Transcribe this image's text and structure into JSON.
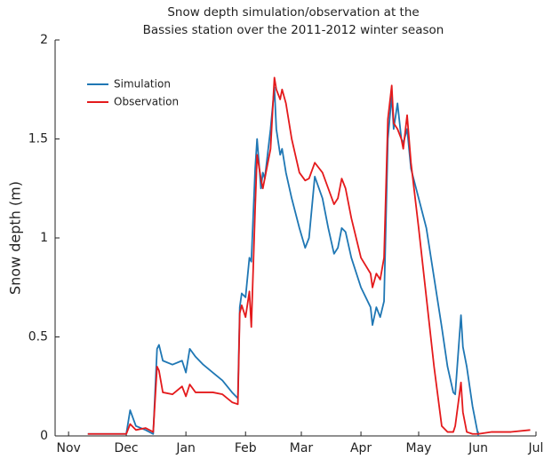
{
  "chart_data": {
    "type": "line",
    "title": [
      "Snow depth simulation/observation at the",
      "Bassies station over the 2011-2012 winter season"
    ],
    "ylabel": "Snow depth (m)",
    "x": [
      10,
      20,
      30,
      32,
      35,
      40,
      44,
      46,
      47,
      49,
      54,
      59,
      61,
      63,
      66,
      70,
      75,
      80,
      85,
      88,
      89,
      90,
      92,
      94,
      95,
      97,
      98,
      100,
      101,
      102,
      105,
      107,
      108,
      110,
      111,
      113,
      116,
      120,
      123,
      125,
      128,
      132,
      135,
      138,
      140,
      142,
      144,
      147,
      152,
      157,
      158,
      160,
      162,
      164,
      166,
      168,
      169,
      171,
      173,
      174,
      176,
      178,
      182,
      186,
      190,
      194,
      197,
      200,
      201,
      204,
      205,
      207,
      210,
      213,
      220,
      230,
      240
    ],
    "series": [
      {
        "name": "Simulation",
        "color": "#1f77b4",
        "values": [
          0.01,
          0.01,
          0.01,
          0.13,
          0.05,
          0.03,
          0.01,
          0.44,
          0.46,
          0.38,
          0.36,
          0.38,
          0.32,
          0.44,
          0.4,
          0.36,
          0.32,
          0.28,
          0.22,
          0.19,
          0.65,
          0.72,
          0.7,
          0.9,
          0.88,
          1.35,
          1.5,
          1.25,
          1.33,
          1.3,
          1.55,
          1.76,
          1.55,
          1.42,
          1.45,
          1.33,
          1.2,
          1.05,
          0.95,
          1.0,
          1.31,
          1.2,
          1.05,
          0.92,
          0.95,
          1.05,
          1.03,
          0.9,
          0.75,
          0.65,
          0.56,
          0.65,
          0.6,
          0.68,
          1.5,
          1.72,
          1.55,
          1.68,
          1.5,
          1.48,
          1.55,
          1.35,
          1.2,
          1.05,
          0.8,
          0.55,
          0.35,
          0.22,
          0.21,
          0.61,
          0.45,
          0.35,
          0.15,
          0,
          null,
          null,
          null
        ]
      },
      {
        "name": "Observation",
        "color": "#e41a1c",
        "values": [
          0.01,
          0.01,
          0.01,
          0.06,
          0.03,
          0.04,
          0.02,
          0.35,
          0.33,
          0.22,
          0.21,
          0.25,
          0.2,
          0.26,
          0.22,
          0.22,
          0.22,
          0.21,
          0.17,
          0.16,
          0.62,
          0.66,
          0.6,
          0.73,
          0.55,
          1.15,
          1.42,
          1.3,
          1.25,
          1.3,
          1.45,
          1.81,
          1.75,
          1.7,
          1.75,
          1.68,
          1.5,
          1.33,
          1.29,
          1.3,
          1.38,
          1.33,
          1.25,
          1.17,
          1.2,
          1.3,
          1.25,
          1.1,
          0.9,
          0.82,
          0.75,
          0.82,
          0.79,
          0.9,
          1.6,
          1.77,
          1.58,
          1.55,
          1.5,
          1.45,
          1.62,
          1.38,
          1.05,
          0.7,
          0.35,
          0.05,
          0.02,
          0.02,
          0.05,
          0.27,
          0.12,
          0.02,
          0.01,
          0.01,
          0.02,
          0.02,
          0.03
        ]
      }
    ],
    "xlim": [
      -7,
      243
    ],
    "xticks": [
      {
        "value": 0,
        "label": "Nov"
      },
      {
        "value": 30,
        "label": "Dec"
      },
      {
        "value": 61,
        "label": "Jan"
      },
      {
        "value": 92,
        "label": "Feb"
      },
      {
        "value": 121,
        "label": "Mar"
      },
      {
        "value": 152,
        "label": "Apr"
      },
      {
        "value": 182,
        "label": "May"
      },
      {
        "value": 213,
        "label": "Jun"
      },
      {
        "value": 243,
        "label": "Jul"
      }
    ],
    "ylim": [
      0,
      2
    ],
    "yticks": [
      0,
      0.5,
      1,
      1.5,
      2
    ],
    "grid": false,
    "legend": "upper-left"
  }
}
